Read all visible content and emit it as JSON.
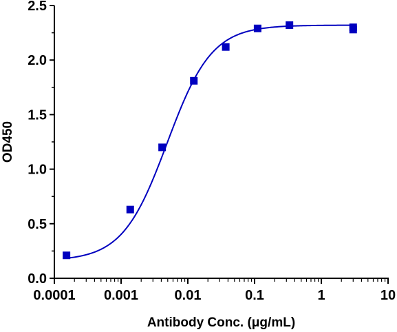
{
  "chart_data": {
    "type": "scatter",
    "title": "",
    "xlabel": "Antibody Conc. (μg/mL)",
    "ylabel": "OD450",
    "x_scale": "log",
    "xlim": [
      0.0001,
      10
    ],
    "ylim": [
      0,
      2.5
    ],
    "x_ticks": [
      {
        "value": 0.0001,
        "label": "0.0001"
      },
      {
        "value": 0.001,
        "label": "0.001"
      },
      {
        "value": 0.01,
        "label": "0.01"
      },
      {
        "value": 0.1,
        "label": "0.1"
      },
      {
        "value": 1,
        "label": "1"
      },
      {
        "value": 10,
        "label": "10"
      }
    ],
    "y_ticks": [
      {
        "value": 0,
        "label": "0.0"
      },
      {
        "value": 0.5,
        "label": "0.5"
      },
      {
        "value": 1.0,
        "label": "1.0"
      },
      {
        "value": 1.5,
        "label": "1.5"
      },
      {
        "value": 2.0,
        "label": "2.0"
      },
      {
        "value": 2.5,
        "label": "2.5"
      }
    ],
    "grid": false,
    "legend": "none",
    "series": [
      {
        "color": "#0000bf",
        "marker": "square",
        "x": [
          0.000152,
          0.00137,
          0.00412,
          0.0123,
          0.037,
          0.111,
          0.333,
          3.0,
          3.0
        ],
        "y": [
          0.21,
          0.63,
          1.2,
          1.81,
          2.12,
          2.29,
          2.32,
          2.3,
          2.28
        ],
        "fit": {
          "model": "4PL",
          "bottom": 0.16,
          "top": 2.32,
          "ec50": 0.0049,
          "hill": 1.3
        }
      }
    ],
    "axis_color": "#000000"
  }
}
